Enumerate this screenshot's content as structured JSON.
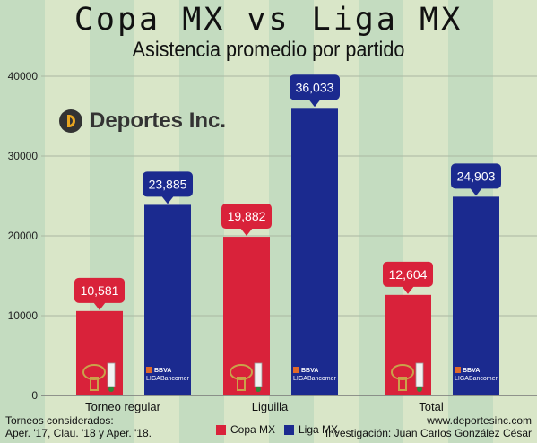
{
  "header": {
    "title": "Copa MX vs Liga MX",
    "subtitle": "Asistencia promedio por partido"
  },
  "brand": {
    "logo_text": "Deportes Inc."
  },
  "footer": {
    "note_line1": "Torneos considerados:",
    "note_line2": "Aper. '17, Clau. '18 y Aper. '18.",
    "website": "www.deportesinc.com",
    "credit": "Investigación: Juan Carlos González César"
  },
  "colors": {
    "copa": "#d9223a",
    "liga": "#1b2a8f",
    "background_light": "#d9e6c8",
    "background_dark": "#c4dcc0"
  },
  "chart_data": {
    "type": "bar",
    "categories": [
      "Torneo regular",
      "Liguilla",
      "Total"
    ],
    "series": [
      {
        "name": "Copa MX",
        "values": [
          10581,
          19882,
          12604
        ],
        "labels": [
          "10,581",
          "19,882",
          "12,604"
        ],
        "color": "#d9223a",
        "icon": "copa-mx-trophy-icon"
      },
      {
        "name": "Liga MX",
        "values": [
          23885,
          36033,
          24903
        ],
        "labels": [
          "23,885",
          "36,033",
          "24,903"
        ],
        "color": "#1b2a8f",
        "icon": "liga-bbva-bancomer-logo-icon"
      }
    ],
    "y_ticks": [
      0,
      10000,
      20000,
      30000,
      40000
    ],
    "ylim": [
      0,
      40000
    ],
    "grid": true,
    "legend_position": "bottom",
    "liga_logo_text": [
      "BBVA",
      "LIGABancomer"
    ]
  }
}
